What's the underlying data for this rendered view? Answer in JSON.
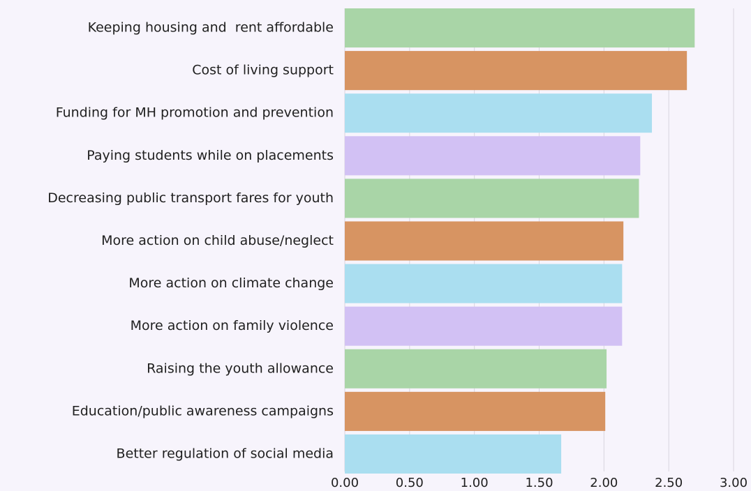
{
  "chart_data": {
    "type": "hbar",
    "categories": [
      "Keeping housing and  rent affordable",
      "Cost of living support",
      "Funding for MH promotion and prevention",
      "Paying students while on placements",
      "Decreasing public transport fares for youth",
      "More action on child abuse/neglect",
      "More action on climate change",
      "More action on family violence",
      "Raising the youth allowance",
      "Education/public awareness campaigns",
      "Better regulation of social media"
    ],
    "values": [
      2.7,
      2.64,
      2.37,
      2.28,
      2.27,
      2.15,
      2.14,
      2.14,
      2.02,
      2.01,
      1.67
    ],
    "colors": [
      "#a9d5a7",
      "#d79462",
      "#aadef0",
      "#d2c1f4",
      "#a9d5a7",
      "#d79462",
      "#aadef0",
      "#d2c1f4",
      "#a9d5a7",
      "#d79462",
      "#aadef0"
    ],
    "xlim": [
      0,
      3
    ],
    "xticks": [
      {
        "value": 0,
        "label": "0.00"
      },
      {
        "value": 0.5,
        "label": "0.50"
      },
      {
        "value": 1,
        "label": "1.00"
      },
      {
        "value": 1.5,
        "label": "1.50"
      },
      {
        "value": 2,
        "label": "2.00"
      },
      {
        "value": 2.5,
        "label": "2.50"
      },
      {
        "value": 3,
        "label": "3.00"
      }
    ],
    "grid": true
  }
}
